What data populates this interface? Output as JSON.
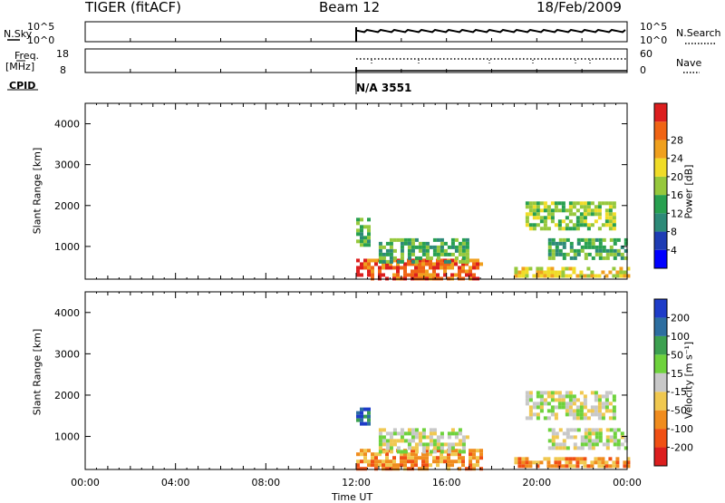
{
  "header": {
    "title": "TIGER (fitACF)",
    "beam": "Beam 12",
    "date": "18/Feb/2009"
  },
  "strips": {
    "nsky_label": "N.Sky",
    "nsky_ticks": [
      "10^5",
      "10^0"
    ],
    "nsearch_label": "N.Search",
    "nsearch_ticks": [
      "10^5",
      "10^0"
    ],
    "freq_label": "Freq.",
    "freq_unit": "[MHz]",
    "freq_ticks": [
      "18",
      "8"
    ],
    "nave_label": "Nave",
    "nave_ticks": [
      "60",
      "0"
    ],
    "cpid_label": "CPID",
    "cpid_value": "N/A 3551"
  },
  "colors": {
    "power": [
      "#0000ff",
      "#1e3cb4",
      "#2d8a78",
      "#28a050",
      "#96c83c",
      "#f0dc28",
      "#f0a01e",
      "#f06414",
      "#dc1e1e"
    ],
    "velocity": [
      "#dc1e1e",
      "#f05014",
      "#f08c1e",
      "#f0c850",
      "#c8c8c8",
      "#6ed23c",
      "#3ca050",
      "#2d6ea0",
      "#1e3cc8"
    ]
  },
  "chart_data": [
    {
      "type": "heatmap",
      "title": "",
      "xlabel": "Time UT",
      "ylabel": "Slant Range [km]",
      "x_ticks": [
        "00:00",
        "04:00",
        "08:00",
        "12:00",
        "16:00",
        "20:00",
        "00:00"
      ],
      "y_ticks": [
        "1000",
        "2000",
        "3000",
        "4000"
      ],
      "ylim": [
        200,
        4500
      ],
      "data_start": "12:00",
      "colorbar_label": "Power [dB]",
      "colorbar_ticks": [
        "4",
        "8",
        "12",
        "16",
        "20",
        "24",
        "28"
      ],
      "echo_regions": [
        {
          "t_start": 12.0,
          "t_end": 17.5,
          "r_min": 250,
          "r_max": 700,
          "level": 7
        },
        {
          "t_start": 13.0,
          "t_end": 17.0,
          "r_min": 600,
          "r_max": 1200,
          "level": 3
        },
        {
          "t_start": 12.0,
          "t_end": 12.5,
          "r_min": 1000,
          "r_max": 1700,
          "level": 3
        },
        {
          "t_start": 19.5,
          "t_end": 23.5,
          "r_min": 1400,
          "r_max": 2100,
          "level": 4
        },
        {
          "t_start": 20.5,
          "t_end": 24.0,
          "r_min": 700,
          "r_max": 1200,
          "level": 3
        },
        {
          "t_start": 19.0,
          "t_end": 24.0,
          "r_min": 250,
          "r_max": 500,
          "level": 5
        }
      ]
    },
    {
      "type": "heatmap",
      "title": "",
      "xlabel": "Time UT",
      "ylabel": "Slant Range [km]",
      "x_ticks": [
        "00:00",
        "04:00",
        "08:00",
        "12:00",
        "16:00",
        "20:00",
        "00:00"
      ],
      "y_ticks": [
        "1000",
        "2000",
        "3000",
        "4000"
      ],
      "ylim": [
        200,
        4500
      ],
      "data_start": "12:00",
      "colorbar_label": "Velocity [m s⁻¹]",
      "colorbar_ticks": [
        "200",
        "100",
        "50",
        "15",
        "-15",
        "-50",
        "-100",
        "-200"
      ],
      "echo_regions": [
        {
          "t_start": 12.0,
          "t_end": 17.5,
          "r_min": 250,
          "r_max": 700,
          "level": 2
        },
        {
          "t_start": 13.0,
          "t_end": 17.0,
          "r_min": 600,
          "r_max": 1200,
          "level": 4
        },
        {
          "t_start": 12.0,
          "t_end": 12.5,
          "r_min": 1300,
          "r_max": 1700,
          "level": 7
        },
        {
          "t_start": 19.5,
          "t_end": 23.5,
          "r_min": 1400,
          "r_max": 2100,
          "level": 4
        },
        {
          "t_start": 20.5,
          "t_end": 24.0,
          "r_min": 700,
          "r_max": 1200,
          "level": 4
        },
        {
          "t_start": 19.0,
          "t_end": 24.0,
          "r_min": 250,
          "r_max": 500,
          "level": 2
        }
      ]
    }
  ]
}
